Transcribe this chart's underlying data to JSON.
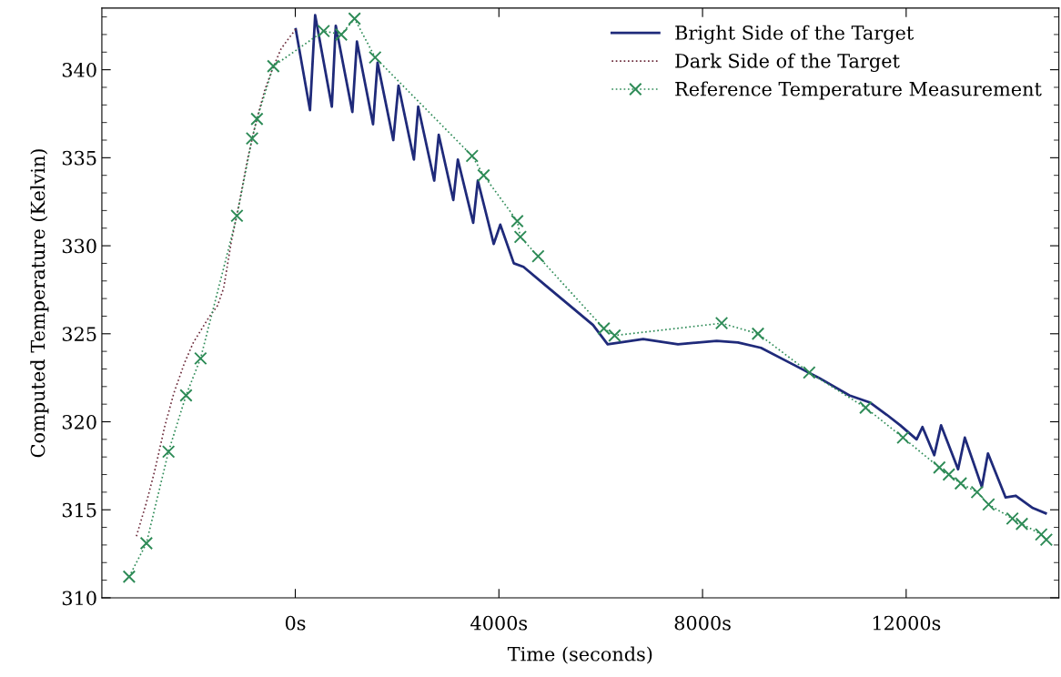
{
  "chart_data": {
    "type": "line",
    "xlabel": "Time (seconds)",
    "ylabel": "Computed Temperature (Kelvin)",
    "xlim": [
      -3800,
      15000
    ],
    "ylim": [
      310,
      343.5
    ],
    "xticks": [
      {
        "value": 0,
        "label": "0s"
      },
      {
        "value": 4000,
        "label": "4000s"
      },
      {
        "value": 8000,
        "label": "8000s"
      },
      {
        "value": 12000,
        "label": "12000s"
      }
    ],
    "yticks": [
      310,
      {
        "value": 311,
        "label": null
      },
      {
        "value": 312,
        "label": null
      },
      {
        "value": 313,
        "label": null
      },
      {
        "value": 314,
        "label": null
      },
      315,
      {
        "value": 316,
        "label": null
      },
      {
        "value": 317,
        "label": null
      },
      {
        "value": 318,
        "label": null
      },
      {
        "value": 319,
        "label": null
      },
      320,
      {
        "value": 321,
        "label": null
      },
      {
        "value": 322,
        "label": null
      },
      {
        "value": 323,
        "label": null
      },
      {
        "value": 324,
        "label": null
      },
      325,
      {
        "value": 326,
        "label": null
      },
      {
        "value": 327,
        "label": null
      },
      {
        "value": 328,
        "label": null
      },
      {
        "value": 329,
        "label": null
      },
      330,
      {
        "value": 331,
        "label": null
      },
      {
        "value": 332,
        "label": null
      },
      {
        "value": 333,
        "label": null
      },
      {
        "value": 334,
        "label": null
      },
      335,
      {
        "value": 336,
        "label": null
      },
      {
        "value": 337,
        "label": null
      },
      {
        "value": 338,
        "label": null
      },
      {
        "value": 339,
        "label": null
      },
      340,
      {
        "value": 341,
        "label": null
      },
      {
        "value": 342,
        "label": null
      },
      {
        "value": 343,
        "label": null
      }
    ],
    "grid": false,
    "legend": "top right",
    "series": [
      {
        "name": "Bright Side of the Target",
        "color": "#1f2a7a",
        "line_style": "solid",
        "marker": "none",
        "x": [
          9,
          289,
          390,
          718,
          795,
          1121,
          1211,
          1527,
          1616,
          1925,
          2027,
          2330,
          2414,
          2729,
          2818,
          3104,
          3193,
          3495,
          3586,
          3898,
          4027,
          4293,
          4482,
          4937,
          5393,
          5848,
          6136,
          6834,
          7518,
          8277,
          8695,
          9148,
          9816,
          10284,
          10884,
          11284,
          11618,
          11884,
          12205,
          12320,
          12552,
          12686,
          13020,
          13152,
          13487,
          13607,
          13954,
          14154,
          14488,
          14741
        ],
        "values": [
          342.3,
          337.7,
          343.1,
          337.9,
          342.5,
          337.6,
          341.6,
          336.9,
          340.4,
          336.0,
          339.1,
          334.9,
          337.9,
          333.7,
          336.3,
          332.6,
          334.9,
          331.3,
          333.7,
          330.1,
          331.2,
          329.0,
          328.8,
          327.7,
          326.6,
          325.5,
          324.4,
          324.7,
          324.4,
          324.6,
          324.5,
          324.2,
          323.2,
          322.5,
          321.5,
          321.1,
          320.4,
          319.8,
          319.0,
          319.7,
          318.1,
          319.8,
          317.3,
          319.1,
          316.3,
          318.2,
          315.7,
          315.8,
          315.1,
          314.8
        ]
      },
      {
        "name": "Dark Side of the Target",
        "color": "#6b2a3a",
        "line_style": "dotted",
        "marker": "none",
        "x": [
          -3121,
          -2925,
          -2746,
          -2568,
          -2389,
          -2182,
          -2003,
          -1705,
          -1527,
          -1407,
          -1259,
          -1110,
          -932,
          -782,
          -604,
          -455,
          -277,
          -98,
          9
        ],
        "values": [
          313.5,
          315.4,
          317.4,
          319.7,
          321.6,
          323.3,
          324.5,
          325.9,
          326.6,
          327.6,
          330.2,
          332.3,
          335.0,
          336.9,
          338.8,
          340.0,
          341.2,
          341.9,
          342.3
        ]
      },
      {
        "name": "Reference Temperature Measurement",
        "color": "#2e8b57",
        "line_style": "dotted",
        "marker": "cross",
        "x": [
          -3264,
          -2925,
          -2491,
          -2146,
          -1861,
          -1146,
          -848,
          -753,
          -432,
          557,
          902,
          1164,
          1568,
          3473,
          3700,
          4361,
          4421,
          4770,
          6061,
          6273,
          8375,
          9089,
          10096,
          11204,
          11938,
          12652,
          12839,
          13073,
          13393,
          13620,
          14087,
          14273,
          14654,
          14754
        ],
        "values": [
          311.2,
          313.1,
          318.3,
          321.5,
          323.6,
          331.7,
          336.1,
          337.2,
          340.2,
          342.2,
          342.0,
          342.9,
          340.7,
          335.1,
          334.0,
          331.4,
          330.5,
          329.4,
          325.3,
          324.9,
          325.6,
          325.0,
          322.8,
          320.8,
          319.1,
          317.4,
          317.0,
          316.5,
          316.0,
          315.3,
          314.5,
          314.2,
          313.6,
          313.3
        ]
      }
    ]
  }
}
